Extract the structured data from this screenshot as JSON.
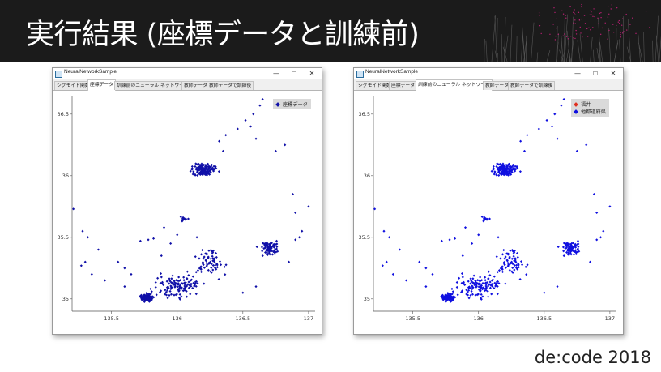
{
  "slide": {
    "title": "実行結果 (座標データと訓練前)",
    "footer": "de:code 2018"
  },
  "windows": [
    {
      "title": "NeuralNetworkSample",
      "controls": {
        "minimize": "—",
        "maximize": "☐",
        "close": "✕"
      },
      "tabs": [
        "シグモイド関数",
        "座標データ",
        "訓練前のニューラル ネットワーク",
        "教師データ",
        "教師データで訓練後"
      ],
      "active_tab": 1,
      "legend": [
        {
          "label": "座標データ",
          "color": "#1010a8"
        }
      ]
    },
    {
      "title": "NeuralNetworkSample",
      "controls": {
        "minimize": "—",
        "maximize": "☐",
        "close": "✕"
      },
      "tabs": [
        "シグモイド関数",
        "座標データ",
        "訓練前のニューラル ネットワーク",
        "教師データ",
        "教師データで訓練後"
      ],
      "active_tab": 2,
      "legend": [
        {
          "label": "福井",
          "color": "#e03020"
        },
        {
          "label": "他都道府県",
          "color": "#1010e0"
        }
      ]
    }
  ],
  "chart_data": [
    {
      "type": "scatter",
      "title": "",
      "xlabel": "",
      "ylabel": "",
      "xlim": [
        135.2,
        137.05
      ],
      "ylim": [
        34.9,
        36.65
      ],
      "xticks": [
        "135.5",
        "136",
        "136.5",
        "137"
      ],
      "yticks": [
        "35",
        "35.5",
        "36",
        "36.5"
      ],
      "series": [
        {
          "name": "座標データ",
          "color": "#1010a8"
        }
      ],
      "clusters": [
        {
          "center": [
            136.2,
            36.05
          ],
          "spread": [
            0.09,
            0.05
          ],
          "count": 160
        },
        {
          "center": [
            135.77,
            35.01
          ],
          "spread": [
            0.05,
            0.03
          ],
          "count": 110
        },
        {
          "center": [
            136.7,
            35.41
          ],
          "spread": [
            0.07,
            0.05
          ],
          "count": 90
        },
        {
          "center": [
            136.0,
            35.1
          ],
          "spread": [
            0.18,
            0.1
          ],
          "count": 120
        },
        {
          "center": [
            136.25,
            35.3
          ],
          "spread": [
            0.12,
            0.12
          ],
          "count": 70
        },
        {
          "center": [
            136.05,
            35.65
          ],
          "spread": [
            0.03,
            0.02
          ],
          "count": 14
        }
      ],
      "tail_points": [
        [
          136.65,
          36.62
        ],
        [
          136.63,
          36.57
        ],
        [
          136.58,
          36.5
        ],
        [
          136.52,
          36.45
        ],
        [
          136.46,
          36.38
        ],
        [
          136.37,
          36.33
        ],
        [
          136.32,
          36.28
        ],
        [
          136.56,
          36.4
        ],
        [
          136.6,
          36.3
        ],
        [
          136.75,
          36.2
        ],
        [
          136.82,
          36.25
        ],
        [
          136.88,
          35.85
        ],
        [
          136.9,
          35.7
        ],
        [
          136.95,
          35.55
        ],
        [
          137.0,
          35.75
        ],
        [
          135.21,
          35.73
        ],
        [
          135.28,
          35.55
        ],
        [
          135.32,
          35.5
        ],
        [
          135.3,
          35.3
        ],
        [
          135.27,
          35.27
        ],
        [
          135.35,
          35.2
        ],
        [
          135.55,
          35.3
        ],
        [
          135.6,
          35.25
        ],
        [
          135.65,
          35.2
        ],
        [
          135.72,
          35.47
        ],
        [
          135.78,
          35.48
        ],
        [
          135.82,
          35.49
        ],
        [
          135.9,
          35.58
        ],
        [
          135.95,
          35.45
        ],
        [
          136.35,
          36.2
        ],
        [
          136.9,
          35.48
        ],
        [
          136.93,
          35.5
        ],
        [
          136.85,
          35.3
        ],
        [
          136.6,
          35.1
        ],
        [
          136.5,
          35.05
        ],
        [
          135.6,
          35.1
        ],
        [
          135.45,
          35.15
        ],
        [
          135.4,
          35.4
        ],
        [
          136.0,
          35.52
        ],
        [
          136.15,
          35.5
        ],
        [
          135.88,
          35.35
        ]
      ]
    },
    {
      "type": "scatter",
      "title": "",
      "xlabel": "",
      "ylabel": "",
      "xlim": [
        135.2,
        137.05
      ],
      "ylim": [
        34.9,
        36.65
      ],
      "xticks": [
        "135.5",
        "136",
        "136.5",
        "137"
      ],
      "yticks": [
        "35",
        "35.5",
        "36",
        "36.5"
      ],
      "series": [
        {
          "name": "福井",
          "color": "#e03020"
        },
        {
          "name": "他都道府県",
          "color": "#1010e0"
        }
      ],
      "note_same_points_as_left": true
    }
  ],
  "colors": {
    "title_bar": "#1b1b1b",
    "accent_magenta": "#e0208a"
  }
}
